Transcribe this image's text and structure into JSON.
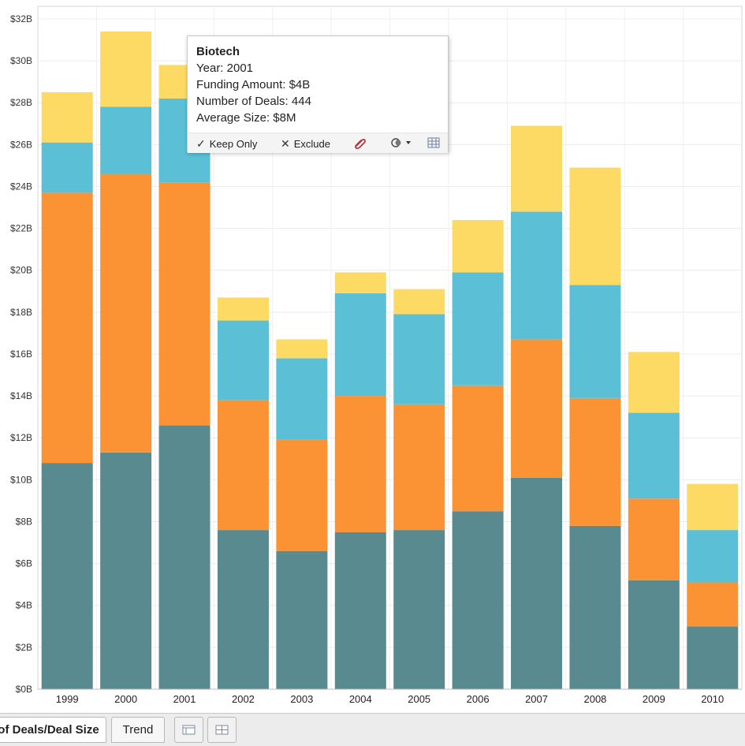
{
  "chart_data": {
    "type": "bar",
    "stacked": true,
    "categories": [
      "1999",
      "2000",
      "2001",
      "2002",
      "2003",
      "2004",
      "2005",
      "2006",
      "2007",
      "2008",
      "2009",
      "2010"
    ],
    "series": [
      {
        "color": "#598a8f",
        "values": [
          10.8,
          11.3,
          12.6,
          7.6,
          6.6,
          7.5,
          7.6,
          8.5,
          10.1,
          7.8,
          5.2,
          3.0
        ]
      },
      {
        "color": "#fb9334",
        "values": [
          12.9,
          13.3,
          11.6,
          6.2,
          5.3,
          6.5,
          6.0,
          6.0,
          6.6,
          6.1,
          3.9,
          2.1
        ]
      },
      {
        "color": "#5bc0d5",
        "values": [
          2.4,
          3.2,
          4.0,
          3.8,
          3.9,
          4.9,
          4.3,
          5.4,
          6.1,
          5.4,
          4.1,
          2.5
        ]
      },
      {
        "color": "#fdda64",
        "values": [
          2.4,
          3.6,
          1.6,
          1.1,
          0.9,
          1.0,
          1.2,
          2.5,
          4.1,
          5.6,
          2.9,
          2.2
        ]
      }
    ],
    "y_tick_labels": [
      "$0B",
      "$2B",
      "$4B",
      "$6B",
      "$8B",
      "$10B",
      "$12B",
      "$14B",
      "$16B",
      "$18B",
      "$20B",
      "$22B",
      "$24B",
      "$26B",
      "$28B",
      "$30B",
      "$32B"
    ],
    "ylim": [
      0,
      32.6
    ],
    "grid": true,
    "legend": "none"
  },
  "tooltip": {
    "title": "Biotech",
    "lines": [
      "Year: 2001",
      "Funding Amount: $4B",
      "Number of Deals: 444",
      "Average Size: $8M"
    ],
    "keep_only_label": "Keep Only",
    "exclude_label": "Exclude",
    "keep_only_icon": "check-icon",
    "exclude_icon": "x-icon"
  },
  "tabs": {
    "active_label": "of Deals/Deal Size",
    "trend_label": "Trend"
  }
}
